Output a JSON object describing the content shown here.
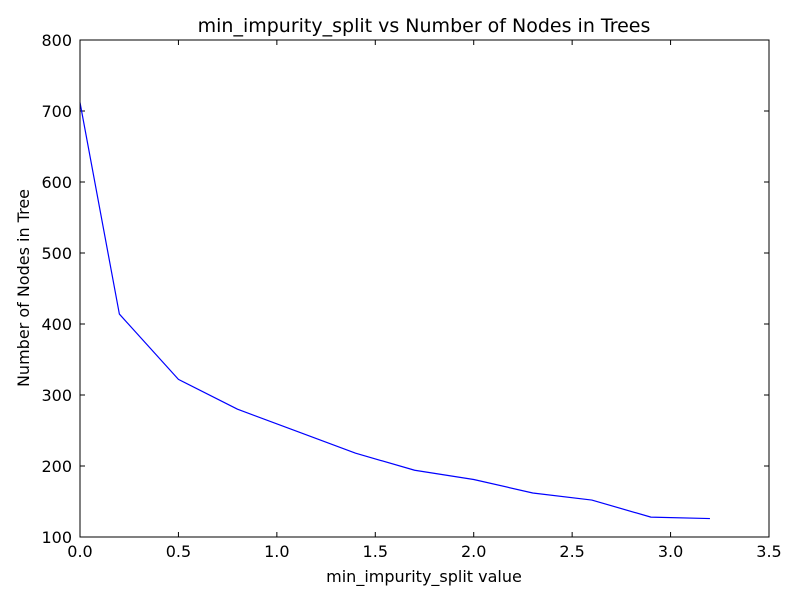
{
  "chart_data": {
    "type": "line",
    "title": "min_impurity_split vs Number of Nodes in Trees",
    "xlabel": "min_impurity_split value",
    "ylabel": "Number of Nodes in Tree",
    "xlim": [
      0.0,
      3.5
    ],
    "ylim": [
      100,
      800
    ],
    "xticks": [
      "0.0",
      "0.5",
      "1.0",
      "1.5",
      "2.0",
      "2.5",
      "3.0",
      "3.5"
    ],
    "yticks": [
      "100",
      "200",
      "300",
      "400",
      "500",
      "600",
      "700",
      "800"
    ],
    "grid": false,
    "series": [
      {
        "color": "#0000ff",
        "x": [
          0.0,
          0.2,
          0.5,
          0.8,
          1.1,
          1.4,
          1.7,
          2.0,
          2.3,
          2.6,
          2.9,
          3.2
        ],
        "y": [
          712,
          414,
          322,
          280,
          249,
          218,
          194,
          181,
          162,
          152,
          128,
          126
        ]
      }
    ]
  }
}
